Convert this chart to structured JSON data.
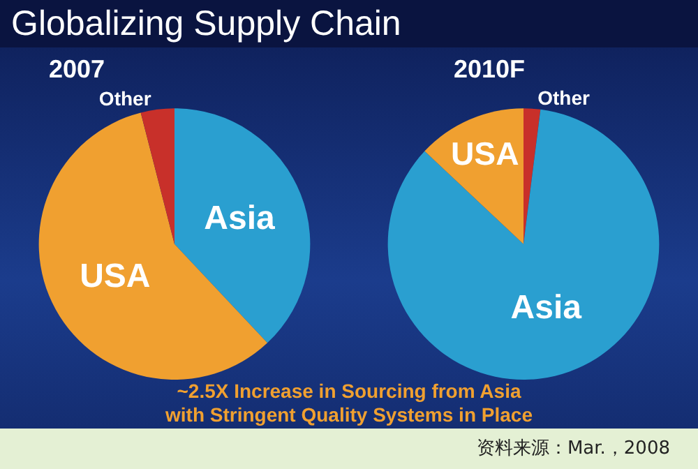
{
  "chart_data": [
    {
      "type": "pie",
      "title": "2007",
      "categories": [
        "Asia",
        "USA",
        "Other"
      ],
      "values": [
        38,
        58,
        4
      ],
      "colors": [
        "#2a9fd0",
        "#f0a030",
        "#c8302a"
      ],
      "annotations": [
        "Globalizing Supply Chain"
      ]
    },
    {
      "type": "pie",
      "title": "2010F",
      "categories": [
        "Other",
        "Asia",
        "USA"
      ],
      "values": [
        2,
        85,
        13
      ],
      "colors": [
        "#c8302a",
        "#2a9fd0",
        "#f0a030"
      ],
      "annotations": [
        "~2.5X Increase in Sourcing from Asia\nwith Stringent Quality Systems in Place",
        "资料来源：Mar.，2008"
      ]
    }
  ]
}
